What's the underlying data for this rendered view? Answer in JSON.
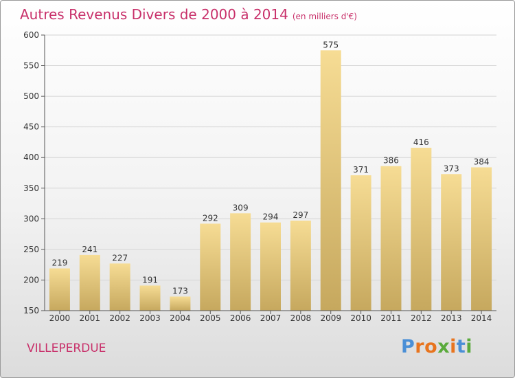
{
  "chart_data": {
    "type": "bar",
    "title": "Autres Revenus Divers de 2000 à 2014",
    "unit_note": "(en milliers d'€)",
    "categories": [
      "2000",
      "2001",
      "2002",
      "2003",
      "2004",
      "2005",
      "2006",
      "2007",
      "2008",
      "2009",
      "2010",
      "2011",
      "2012",
      "2013",
      "2014"
    ],
    "values": [
      219,
      241,
      227,
      191,
      173,
      292,
      309,
      294,
      297,
      575,
      371,
      386,
      416,
      373,
      384
    ],
    "ylim": [
      150,
      600
    ],
    "yticks": [
      150,
      200,
      250,
      300,
      350,
      400,
      450,
      500,
      550,
      600
    ],
    "grid": true,
    "bar_color": "#e8cc7a",
    "text_color": "#c8306a"
  },
  "location": "VILLEPERDUE",
  "logo": {
    "text": "Proxiti",
    "letter_colors": [
      "#4a8fd6",
      "#e8741e",
      "#e8741e",
      "#5aaa3c",
      "#e8741e",
      "#4a8fd6",
      "#5aaa3c"
    ]
  }
}
